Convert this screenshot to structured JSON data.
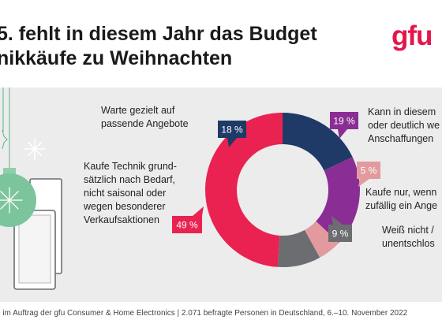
{
  "headline": {
    "line1": "5. fehlt in diesem Jahr das Budget",
    "line2": "nikkäufe zu Weihnachten"
  },
  "logo": "gfu",
  "colors": {
    "navy": "#1f3a67",
    "purple": "#8a2e95",
    "pink": "#e39a9f",
    "gray": "#6b6d70",
    "red": "#ea2251",
    "panel": "#ececec",
    "logo": "#e5154a"
  },
  "chart_data": {
    "type": "pie",
    "donut": true,
    "start": "top",
    "slices": [
      {
        "key": "navy",
        "value": 18,
        "pct_label": "18 %",
        "label": [
          "Warte gezielt auf",
          "passende Angebote"
        ]
      },
      {
        "key": "purple",
        "value": 19,
        "pct_label": "19 %",
        "label": [
          "Kann in diesem",
          "oder deutlich we",
          "Anschaffungen"
        ]
      },
      {
        "key": "pink",
        "value": 5,
        "pct_label": "5 %",
        "label": [
          "Kaufe nur, wenn",
          "zufällig ein Ange"
        ]
      },
      {
        "key": "gray",
        "value": 9,
        "pct_label": "9 %",
        "label": [
          "Weiß nicht /",
          "unentschlos"
        ]
      },
      {
        "key": "red",
        "value": 49,
        "pct_label": "49 %",
        "label": [
          "Kaufe Technik grund-",
          "sätzlich nach Bedarf,",
          "nicht saisonal oder",
          "wegen besonderer",
          "Verkaufsaktionen"
        ]
      }
    ]
  },
  "footer": "e im Auftrag der gfu Consumer & Home Electronics | 2.071 befragte Personen in Deutschland, 6.–10. November 2022"
}
